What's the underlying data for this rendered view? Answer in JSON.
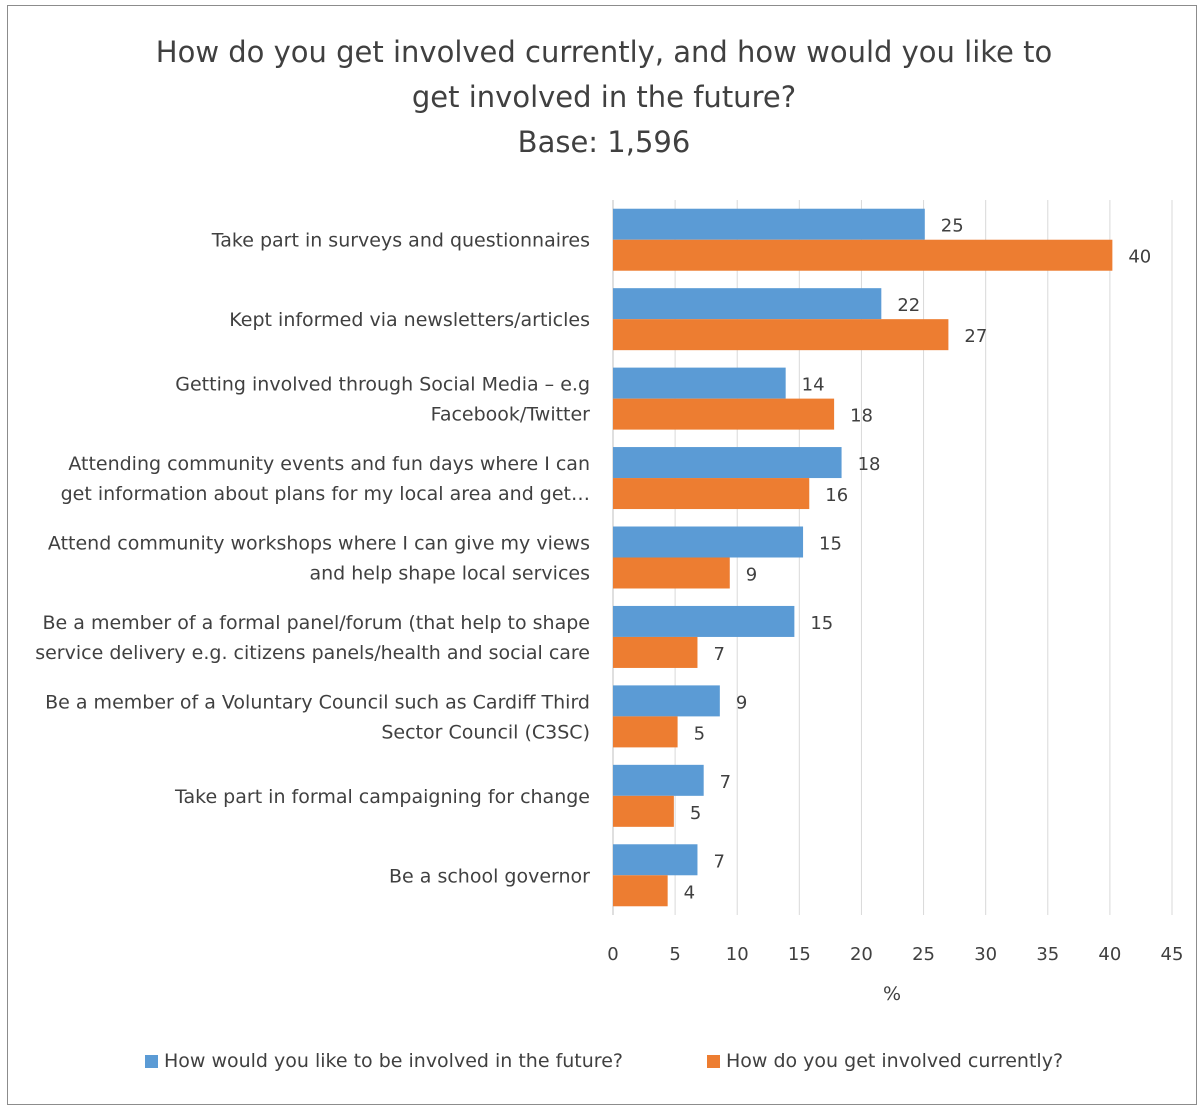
{
  "chart_data": {
    "type": "bar",
    "orientation": "horizontal",
    "title_lines": [
      "How do you get involved currently, and how would you like to",
      "get involved in the future?",
      "Base: 1,596"
    ],
    "xlabel": "%",
    "xlim": [
      0,
      45
    ],
    "xticks": [
      0,
      5,
      10,
      15,
      20,
      25,
      30,
      35,
      40,
      45
    ],
    "grid": true,
    "legend_position": "bottom",
    "categories": [
      {
        "lines": [
          "Take part in surveys and questionnaires"
        ]
      },
      {
        "lines": [
          "Kept informed via newsletters/articles"
        ]
      },
      {
        "lines": [
          "Getting involved through Social Media – e.g",
          "Facebook/Twitter"
        ]
      },
      {
        "lines": [
          "Attending community events and fun days where I can",
          "get information about plans for my local area and get…"
        ]
      },
      {
        "lines": [
          "Attend community workshops where I can give my views",
          "and help shape local services"
        ]
      },
      {
        "lines": [
          "Be a member of a formal panel/forum (that help to shape",
          "service delivery e.g. citizens panels/health and social care"
        ]
      },
      {
        "lines": [
          "Be a member of a Voluntary Council such as Cardiff Third",
          "Sector Council (C3SC)"
        ]
      },
      {
        "lines": [
          "Take part in formal campaigning for change"
        ]
      },
      {
        "lines": [
          "Be a school governor"
        ]
      }
    ],
    "series": [
      {
        "name": "How would you like to be involved in the future?",
        "color": "#5b9bd5",
        "values": [
          25.1,
          21.6,
          13.9,
          18.4,
          15.3,
          14.6,
          8.6,
          7.3,
          6.8
        ],
        "labels": [
          "25",
          "22",
          "14",
          "18",
          "15",
          "15",
          "9",
          "7",
          "7"
        ]
      },
      {
        "name": "How do you get involved currently?",
        "color": "#ed7d31",
        "values": [
          40.2,
          27.0,
          17.8,
          15.8,
          9.4,
          6.8,
          5.2,
          4.9,
          4.4
        ],
        "labels": [
          "40",
          "27",
          "18",
          "16",
          "9",
          "7",
          "5",
          "5",
          "4"
        ]
      }
    ]
  }
}
